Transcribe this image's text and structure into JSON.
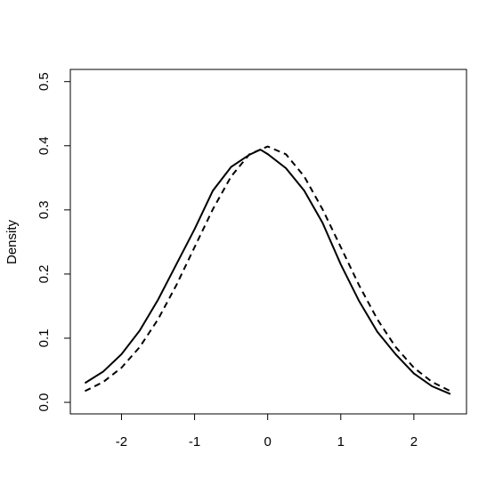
{
  "chart_data": {
    "type": "line",
    "y_label": "Density",
    "xlim": [
      -2.7,
      2.72
    ],
    "ylim": [
      -0.018,
      0.519
    ],
    "xticks": [
      -2,
      -1,
      0,
      1,
      2
    ],
    "yticks": [
      {
        "value": 0,
        "label": "0.0"
      },
      0.1,
      0.2,
      0.3,
      0.4,
      0.5
    ],
    "series": [
      {
        "color": "#000000",
        "dash": "solid",
        "x": [
          -2.5,
          -2.25,
          -2,
          -1.75,
          -1.5,
          -1.25,
          -1,
          -0.75,
          -0.5,
          -0.25,
          -0.1,
          0,
          0.25,
          0.5,
          0.75,
          1,
          1.25,
          1.5,
          1.75,
          2,
          2.25,
          2.5
        ],
        "values": [
          0.03,
          0.048,
          0.075,
          0.112,
          0.16,
          0.215,
          0.27,
          0.33,
          0.367,
          0.386,
          0.394,
          0.387,
          0.365,
          0.33,
          0.28,
          0.215,
          0.158,
          0.11,
          0.075,
          0.045,
          0.025,
          0.013
        ]
      },
      {
        "color": "#000000",
        "dash": "dashed",
        "x": [
          -2.5,
          -2.25,
          -2,
          -1.75,
          -1.5,
          -1.25,
          -1,
          -0.75,
          -0.5,
          -0.25,
          0,
          0.25,
          0.5,
          0.75,
          1,
          1.25,
          1.5,
          1.75,
          2,
          2.25,
          2.5
        ],
        "values": [
          0.0175,
          0.0317,
          0.054,
          0.0863,
          0.1295,
          0.1826,
          0.242,
          0.3011,
          0.3521,
          0.3867,
          0.3989,
          0.3867,
          0.3521,
          0.3011,
          0.242,
          0.1826,
          0.1295,
          0.0863,
          0.054,
          0.0317,
          0.0175
        ]
      }
    ]
  }
}
